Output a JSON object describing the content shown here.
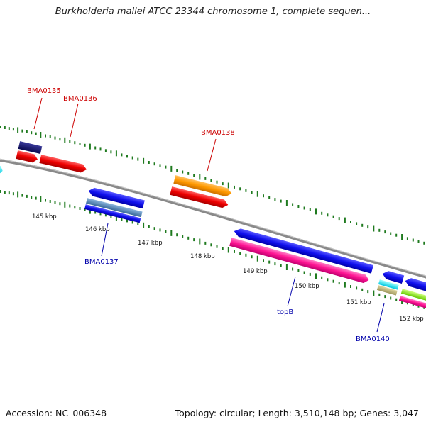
{
  "title": "Burkholderia mallei ATCC 23344 chromosome 1, complete sequen...",
  "footer": {
    "accession": "Accession: NC_006348",
    "topology": "Topology: circular; Length: 3,510,148 bp; Genes: 3,047"
  },
  "colors": {
    "backbone": "#8a8a8a",
    "tick": "#1f7a1f",
    "label_red": "#cc0000",
    "label_blue": "#0000aa"
  },
  "scale_labels": [
    "145 kbp",
    "146 kbp",
    "147 kbp",
    "148 kbp",
    "149 kbp",
    "150 kbp",
    "151 kbp",
    "152 kbp"
  ],
  "features": [
    {
      "name": "BMA0135",
      "color": "#cc0000"
    },
    {
      "name": "BMA0136",
      "color": "#cc0000"
    },
    {
      "name": "BMA0137",
      "color": "#0000aa"
    },
    {
      "name": "BMA0138",
      "color": "#cc0000"
    },
    {
      "name": "topB",
      "color": "#0000aa"
    },
    {
      "name": "BMA0140",
      "color": "#0000aa"
    }
  ]
}
